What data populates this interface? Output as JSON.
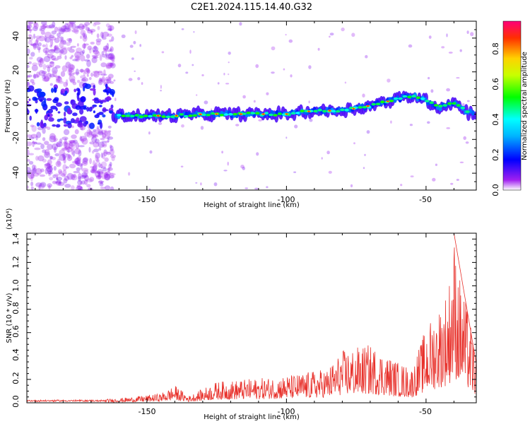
{
  "title": "C2E1.2024.115.14.40.G32",
  "chart_data": [
    {
      "type": "heatmap",
      "xlabel": "Height of straight line (km)",
      "ylabel": "Frequency (Hz)",
      "xlim": [
        -193,
        -32
      ],
      "ylim": [
        -50,
        50
      ],
      "xticks": [
        "-150",
        "-100",
        "-50"
      ],
      "yticks": [
        "40",
        "20",
        "0",
        "-20",
        "-40"
      ],
      "colorbar": {
        "label": "Normalized spectral amplitude",
        "range": [
          0.0,
          0.95
        ],
        "ticks": [
          "0.0",
          "0.2",
          "0.4",
          "0.6",
          "0.8"
        ],
        "colormap": "rainbow"
      },
      "ridge": {
        "x": [
          -160,
          -150,
          -140,
          -130,
          -120,
          -110,
          -100,
          -90,
          -80,
          -70,
          -60,
          -55,
          -50,
          -45,
          -40,
          -35
        ],
        "y": [
          -6,
          -6,
          -6,
          -5,
          -5,
          -5,
          -5,
          -3,
          -3,
          0,
          4,
          6,
          3,
          -1,
          2,
          -4
        ]
      },
      "noise_region_x": [
        -193,
        -162
      ]
    },
    {
      "type": "line",
      "xlabel": "Height of straight line (km)",
      "ylabel": "SNR (10 * v/v)",
      "yscale_label": "(x10⁴)",
      "xlim": [
        -193,
        -32
      ],
      "ylim": [
        0,
        1.45
      ],
      "xticks": [
        "-150",
        "-100",
        "-50"
      ],
      "yticks": [
        "0.0",
        "0.2",
        "0.4",
        "0.6",
        "0.8",
        "1.0",
        "1.2",
        "1.4"
      ],
      "color": "#e8322c",
      "envelope": {
        "x": [
          -193,
          -165,
          -155,
          -145,
          -140,
          -135,
          -125,
          -115,
          -105,
          -95,
          -85,
          -80,
          -70,
          -60,
          -55,
          -50,
          -45,
          -42,
          -40,
          -38,
          -35,
          -32
        ],
        "y": [
          0.02,
          0.03,
          0.05,
          0.08,
          0.15,
          0.06,
          0.18,
          0.2,
          0.22,
          0.25,
          0.3,
          0.45,
          0.5,
          0.35,
          0.3,
          0.65,
          0.85,
          1.0,
          1.45,
          1.1,
          0.8,
          0.4
        ]
      }
    }
  ]
}
